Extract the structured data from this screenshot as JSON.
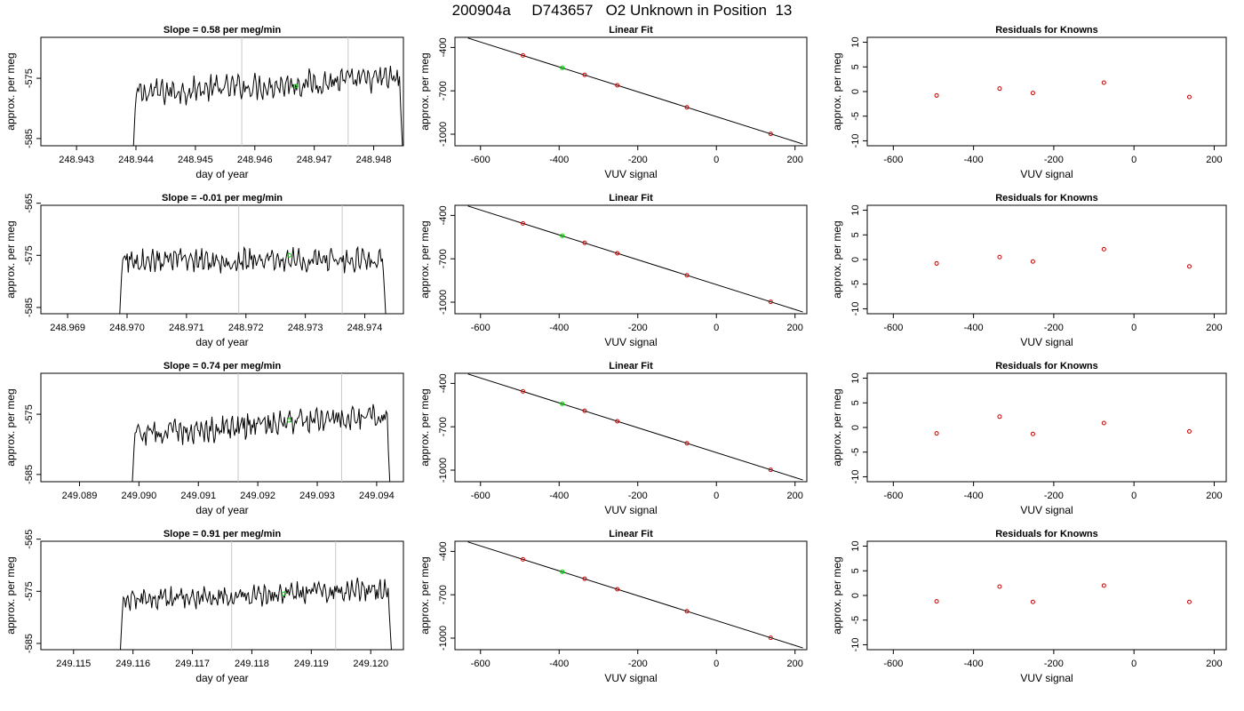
{
  "figure": {
    "title": "200904a     D743657   O2 Unknown in Position  13",
    "colors": {
      "trace": "#000000",
      "highlight": "#00dd00",
      "known": "#cc0000",
      "marker": "#c8c8c8",
      "frame": "#000000"
    }
  },
  "chart_data": [
    {
      "type": "line",
      "panel": "trace",
      "row": 1,
      "title": "Slope =  0.58  per meg/min",
      "xlabel": "day of year",
      "ylabel": "approx. per meg",
      "xlim": [
        248.9424,
        248.9485
      ],
      "ylim": [
        -586.2,
        -568.2
      ],
      "xticks": [
        "248.943",
        "248.944",
        "248.945",
        "248.946",
        "248.947",
        "248.948"
      ],
      "yticks": [
        "-575",
        "-585"
      ],
      "x_start": 248.94395,
      "x_end": 248.94851,
      "baseline": -577.5,
      "amplitude": 1.8,
      "drift": 2.6,
      "vlines": [
        248.94578,
        248.94757
      ],
      "highlight_point": [
        248.94669,
        -576.3
      ]
    },
    {
      "type": "scatter",
      "panel": "fit",
      "row": 1,
      "title": "Linear Fit",
      "xlabel": "VUV signal",
      "ylabel": "approx. per meg",
      "xlim": [
        -665,
        230
      ],
      "ylim": [
        -1080,
        -330
      ],
      "xticks": [
        "-600",
        "-400",
        "-200",
        "0",
        "200"
      ],
      "yticks": [
        "-400",
        "-700",
        "-1000"
      ],
      "line": {
        "x": [
          -632,
          220
        ],
        "y": [
          -335,
          -1068
        ]
      },
      "knowns": {
        "x": [
          -492,
          -335,
          -252,
          -75,
          138
        ],
        "y": [
          -455,
          -590,
          -662,
          -814,
          -998
        ]
      },
      "unknown": {
        "x": -392,
        "y": -541
      }
    },
    {
      "type": "scatter",
      "panel": "residuals",
      "row": 1,
      "title": "Residuals for Knowns",
      "xlabel": "VUV signal",
      "ylabel": "approx. per meg",
      "xlim": [
        -665,
        230
      ],
      "ylim": [
        -11,
        11
      ],
      "xticks": [
        "-600",
        "-400",
        "-200",
        "0",
        "200"
      ],
      "yticks": [
        "10",
        "5",
        "0",
        "-5",
        "-10"
      ],
      "x": [
        -492,
        -335,
        -252,
        -75,
        138
      ],
      "y": [
        -0.8,
        0.6,
        -0.3,
        1.8,
        -1.1
      ]
    },
    {
      "type": "line",
      "panel": "trace",
      "row": 2,
      "title": "Slope =  -0.01  per meg/min",
      "xlabel": "day of year",
      "ylabel": "approx. per meg",
      "xlim": [
        248.96855,
        248.97465
      ],
      "ylim": [
        -586.2,
        -565.4
      ],
      "xticks": [
        "248.969",
        "248.970",
        "248.971",
        "248.972",
        "248.973",
        "248.974"
      ],
      "yticks": [
        "-565",
        "-575",
        "-585"
      ],
      "x_start": 248.96987,
      "x_end": 248.97437,
      "baseline": -576.0,
      "amplitude": 1.9,
      "drift": 0.1,
      "vlines": [
        248.97188,
        248.97362
      ],
      "highlight_point": [
        248.97273,
        -575.0
      ]
    },
    {
      "type": "scatter",
      "panel": "fit",
      "row": 2,
      "title": "Linear Fit",
      "xlabel": "VUV signal",
      "ylabel": "approx. per meg",
      "xlim": [
        -665,
        230
      ],
      "ylim": [
        -1080,
        -330
      ],
      "xticks": [
        "-600",
        "-400",
        "-200",
        "0",
        "200"
      ],
      "yticks": [
        "-400",
        "-700",
        "-1000"
      ],
      "line": {
        "x": [
          -632,
          220
        ],
        "y": [
          -335,
          -1068
        ]
      },
      "knowns": {
        "x": [
          -492,
          -335,
          -252,
          -75,
          138
        ],
        "y": [
          -455,
          -590,
          -662,
          -814,
          -998
        ]
      },
      "unknown": {
        "x": -392,
        "y": -541
      }
    },
    {
      "type": "scatter",
      "panel": "residuals",
      "row": 2,
      "title": "Residuals for Knowns",
      "xlabel": "VUV signal",
      "ylabel": "approx. per meg",
      "xlim": [
        -665,
        230
      ],
      "ylim": [
        -11,
        11
      ],
      "xticks": [
        "-600",
        "-400",
        "-200",
        "0",
        "200"
      ],
      "yticks": [
        "10",
        "5",
        "0",
        "-5",
        "-10"
      ],
      "x": [
        -492,
        -335,
        -252,
        -75,
        138
      ],
      "y": [
        -0.8,
        0.5,
        -0.4,
        2.1,
        -1.4
      ]
    },
    {
      "type": "line",
      "panel": "trace",
      "row": 3,
      "title": "Slope =  0.74  per meg/min",
      "xlabel": "day of year",
      "ylabel": "approx. per meg",
      "xlim": [
        249.08835,
        249.09445
      ],
      "ylim": [
        -586.2,
        -568.2
      ],
      "xticks": [
        "249.089",
        "249.090",
        "249.091",
        "249.092",
        "249.093",
        "249.094"
      ],
      "yticks": [
        "-575",
        "-585"
      ],
      "x_start": 249.08988,
      "x_end": 249.09425,
      "baseline": -578.5,
      "amplitude": 1.7,
      "drift": 3.4,
      "vlines": [
        249.09167,
        249.09341
      ],
      "highlight_point": [
        249.09253,
        -576.0
      ]
    },
    {
      "type": "scatter",
      "panel": "fit",
      "row": 3,
      "title": "Linear Fit",
      "xlabel": "VUV signal",
      "ylabel": "approx. per meg",
      "xlim": [
        -665,
        230
      ],
      "ylim": [
        -1080,
        -330
      ],
      "xticks": [
        "-600",
        "-400",
        "-200",
        "0",
        "200"
      ],
      "yticks": [
        "-400",
        "-700",
        "-1000"
      ],
      "line": {
        "x": [
          -632,
          220
        ],
        "y": [
          -335,
          -1068
        ]
      },
      "knowns": {
        "x": [
          -492,
          -335,
          -252,
          -75,
          138
        ],
        "y": [
          -455,
          -590,
          -662,
          -814,
          -998
        ]
      },
      "unknown": {
        "x": -392,
        "y": -541
      }
    },
    {
      "type": "scatter",
      "panel": "residuals",
      "row": 3,
      "title": "Residuals for Knowns",
      "xlabel": "VUV signal",
      "ylabel": "approx. per meg",
      "xlim": [
        -665,
        230
      ],
      "ylim": [
        -11,
        11
      ],
      "xticks": [
        "-600",
        "-400",
        "-200",
        "0",
        "200"
      ],
      "yticks": [
        "10",
        "5",
        "0",
        "-5",
        "-10"
      ],
      "x": [
        -492,
        -335,
        -252,
        -75,
        138
      ],
      "y": [
        -1.2,
        2.2,
        -1.3,
        0.9,
        -0.8
      ]
    },
    {
      "type": "line",
      "panel": "trace",
      "row": 4,
      "title": "Slope =  0.91  per meg/min",
      "xlabel": "day of year",
      "ylabel": "approx. per meg",
      "xlim": [
        249.11445,
        249.12055
      ],
      "ylim": [
        -586.2,
        -565.4
      ],
      "xticks": [
        "249.115",
        "249.116",
        "249.117",
        "249.118",
        "249.119",
        "249.120"
      ],
      "yticks": [
        "-565",
        "-575",
        "-585"
      ],
      "x_start": 249.11578,
      "x_end": 249.12037,
      "baseline": -576.8,
      "amplitude": 1.8,
      "drift": 2.2,
      "vlines": [
        249.11766,
        249.11941
      ],
      "highlight_point": [
        249.11854,
        -575.5
      ]
    },
    {
      "type": "scatter",
      "panel": "fit",
      "row": 4,
      "title": "Linear Fit",
      "xlabel": "VUV signal",
      "ylabel": "approx. per meg",
      "xlim": [
        -665,
        230
      ],
      "ylim": [
        -1080,
        -330
      ],
      "xticks": [
        "-600",
        "-400",
        "-200",
        "0",
        "200"
      ],
      "yticks": [
        "-400",
        "-700",
        "-1000"
      ],
      "line": {
        "x": [
          -632,
          220
        ],
        "y": [
          -335,
          -1068
        ]
      },
      "knowns": {
        "x": [
          -492,
          -335,
          -252,
          -75,
          138
        ],
        "y": [
          -455,
          -590,
          -662,
          -814,
          -998
        ]
      },
      "unknown": {
        "x": -392,
        "y": -541
      }
    },
    {
      "type": "scatter",
      "panel": "residuals",
      "row": 4,
      "title": "Residuals for Knowns",
      "xlabel": "VUV signal",
      "ylabel": "approx. per meg",
      "xlim": [
        -665,
        230
      ],
      "ylim": [
        -11,
        11
      ],
      "xticks": [
        "-600",
        "-400",
        "-200",
        "0",
        "200"
      ],
      "yticks": [
        "10",
        "5",
        "0",
        "-5",
        "-10"
      ],
      "x": [
        -492,
        -335,
        -252,
        -75,
        138
      ],
      "y": [
        -1.2,
        1.8,
        -1.3,
        2.0,
        -1.3
      ]
    }
  ]
}
